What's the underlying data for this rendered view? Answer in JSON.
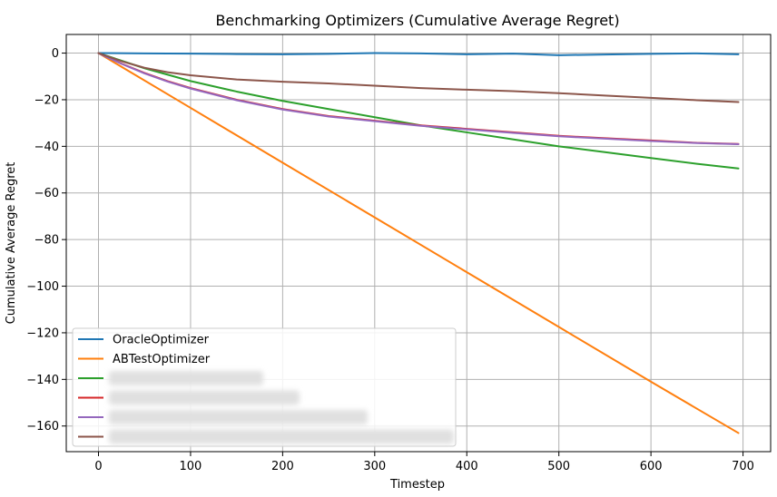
{
  "chart_data": {
    "type": "line",
    "title": "Benchmarking Optimizers (Cumulative Average Regret)",
    "xlabel": "Timestep",
    "ylabel": "Cumulative Average Regret",
    "xlim": [
      -35,
      730
    ],
    "ylim": [
      -171,
      8
    ],
    "xticks": [
      0,
      100,
      200,
      300,
      400,
      500,
      600,
      700
    ],
    "yticks": [
      0,
      -20,
      -40,
      -60,
      -80,
      -100,
      -120,
      -140,
      -160
    ],
    "grid": true,
    "legend_position": "lower-left",
    "series": [
      {
        "name": "OracleOptimizer",
        "color": "#1f77b4",
        "redacted": false,
        "x": [
          0,
          50,
          100,
          150,
          200,
          250,
          300,
          350,
          400,
          450,
          500,
          550,
          600,
          650,
          695
        ],
        "y": [
          0,
          -0.1,
          -0.2,
          -0.4,
          -0.5,
          -0.3,
          0,
          -0.1,
          -0.5,
          -0.2,
          -0.9,
          -0.6,
          -0.3,
          -0.1,
          -0.5
        ]
      },
      {
        "name": "ABTestOptimizer",
        "color": "#ff7f0e",
        "redacted": false,
        "x": [
          0,
          100,
          200,
          300,
          400,
          500,
          600,
          695
        ],
        "y": [
          0,
          -23.5,
          -47,
          -70.5,
          -94,
          -117.5,
          -141,
          -163
        ]
      },
      {
        "color": "#2ca02c",
        "redacted": true,
        "x": [
          0,
          50,
          100,
          150,
          200,
          250,
          300,
          350,
          400,
          450,
          500,
          550,
          600,
          650,
          695
        ],
        "y": [
          0,
          -6.5,
          -12,
          -16.5,
          -20.5,
          -24,
          -27.5,
          -31,
          -34,
          -37,
          -40,
          -42.5,
          -45,
          -47.5,
          -49.5
        ]
      },
      {
        "color": "#d62728",
        "redacted": true,
        "x": [
          0,
          25,
          50,
          75,
          100,
          150,
          200,
          250,
          300,
          350,
          400,
          450,
          500,
          550,
          600,
          650,
          695
        ],
        "y": [
          0,
          -4.5,
          -8.5,
          -12,
          -15,
          -20,
          -24,
          -27,
          -29,
          -31,
          -32.5,
          -34,
          -35.5,
          -36.5,
          -37.5,
          -38.5,
          -39
        ]
      },
      {
        "color": "#9467bd",
        "redacted": true,
        "x": [
          0,
          25,
          50,
          75,
          100,
          150,
          200,
          250,
          300,
          350,
          400,
          450,
          500,
          550,
          600,
          650,
          695
        ],
        "y": [
          0,
          -4.6,
          -8.7,
          -12.2,
          -15.2,
          -20.2,
          -24.2,
          -27.2,
          -29.2,
          -31.2,
          -32.7,
          -34.2,
          -35.7,
          -36.7,
          -37.7,
          -38.6,
          -39.1
        ]
      },
      {
        "color": "#8c564b",
        "redacted": true,
        "x": [
          0,
          25,
          50,
          75,
          100,
          150,
          200,
          250,
          300,
          350,
          400,
          450,
          500,
          550,
          600,
          650,
          695
        ],
        "y": [
          0,
          -3.5,
          -6.3,
          -8.2,
          -9.5,
          -11.3,
          -12.3,
          -13,
          -14,
          -15,
          -15.7,
          -16.3,
          -17.2,
          -18.2,
          -19.2,
          -20.2,
          -21
        ]
      }
    ]
  }
}
